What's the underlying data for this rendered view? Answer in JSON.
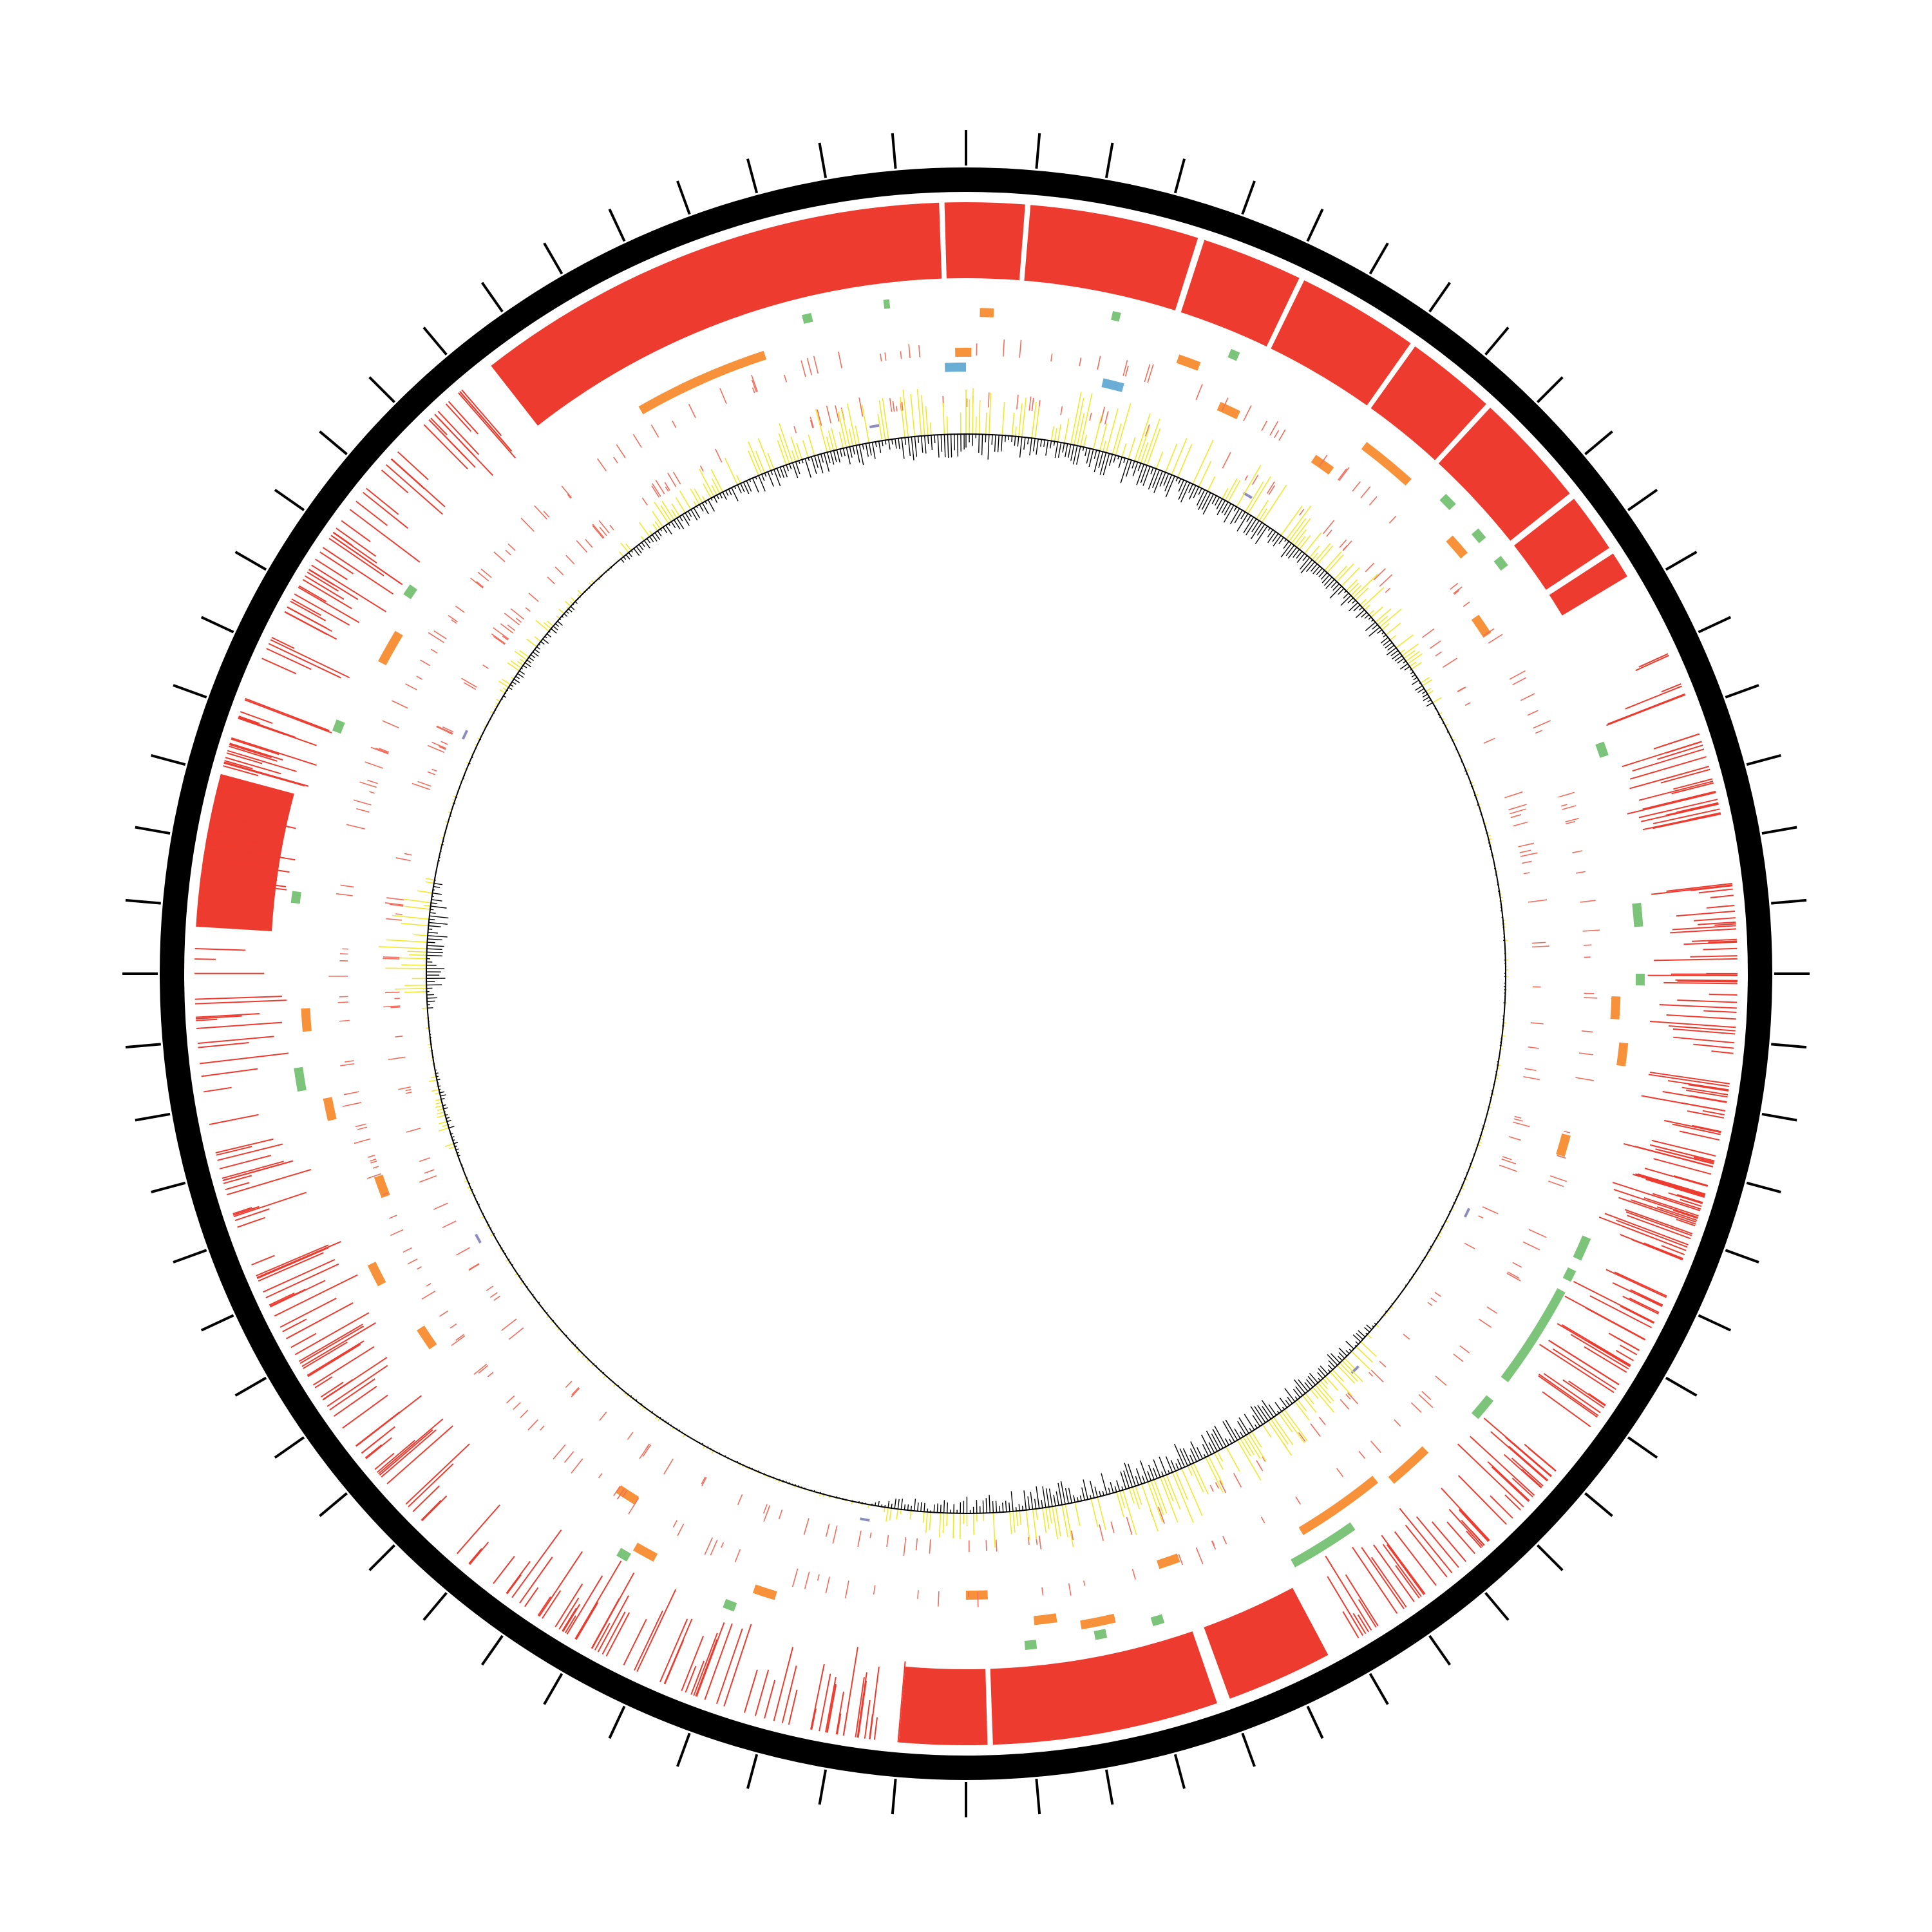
{
  "figure": {
    "type": "circular-genome-map",
    "tick_count": 72,
    "colors": {
      "backbone": "#000000",
      "similarity_blocks": "#ee3b2f",
      "genes_red": "#f26b5b",
      "genes_orange": "#f7923a",
      "genes_green": "#7cc47a",
      "genes_blue": "#6aaed6",
      "gc_positive": "#f2e72b",
      "gc_negative": "#000000",
      "small_marks": "#8c8cbf",
      "inner_circle": "#000000"
    },
    "tracks": {
      "blocks": [
        [
          -38,
          -2
        ],
        [
          -1.6,
          4.4
        ],
        [
          4.8,
          17.5
        ],
        [
          18,
          25.6
        ],
        [
          26,
          35.2
        ],
        [
          35.6,
          42.4
        ],
        [
          42.8,
          51.5
        ],
        [
          52,
          56.5
        ],
        [
          57,
          59
        ],
        [
          152,
          160
        ],
        [
          161,
          178
        ],
        [
          178.4,
          185
        ],
        [
          -86.5,
          -75
        ]
      ],
      "dense": [
        [
          -53,
          -40,
          22
        ],
        [
          -66,
          -54,
          30
        ],
        [
          -83,
          -69,
          40
        ],
        [
          -110,
          -88,
          30
        ],
        [
          -140,
          -112,
          52
        ],
        [
          -175,
          -142,
          45
        ],
        [
          65,
          80,
          28
        ],
        [
          82,
          96,
          35
        ],
        [
          98,
          112,
          55
        ],
        [
          114,
          126,
          32
        ],
        [
          130,
          150,
          45
        ],
        [
          188,
          204,
          18
        ]
      ],
      "orange": [
        [
          -26,
          -24
        ],
        [
          -1,
          0.5
        ],
        [
          1.2,
          2.4
        ],
        [
          19,
          21
        ],
        [
          24,
          26
        ],
        [
          -62,
          -59
        ],
        [
          -30,
          -18
        ],
        [
          34,
          36
        ],
        [
          37,
          42
        ],
        [
          48,
          50
        ],
        [
          55,
          57
        ],
        [
          -95,
          -93
        ],
        [
          -103,
          -101
        ],
        [
          -111,
          -109
        ],
        [
          -118,
          -116
        ],
        [
          -125,
          -123
        ],
        [
          -148,
          -146
        ],
        [
          -152,
          -150
        ],
        [
          -163,
          -161
        ],
        [
          160,
          162
        ],
        [
          167,
          170
        ],
        [
          172,
          174
        ],
        [
          178,
          180
        ],
        [
          136,
          140
        ],
        [
          141,
          149
        ],
        [
          105,
          107
        ],
        [
          96,
          98
        ],
        [
          92,
          94
        ]
      ],
      "green": [
        [
          -14,
          -13.2
        ],
        [
          -7,
          -6.5
        ],
        [
          12.5,
          13.2
        ],
        [
          23,
          23.8
        ],
        [
          45,
          46.2
        ],
        [
          49,
          50
        ],
        [
          52,
          53
        ],
        [
          70,
          71.2
        ],
        [
          84,
          86
        ],
        [
          90,
          91
        ],
        [
          113,
          115
        ],
        [
          116,
          117
        ],
        [
          118,
          127
        ],
        [
          129,
          131
        ],
        [
          145,
          151
        ],
        [
          163,
          164
        ],
        [
          168,
          169
        ],
        [
          174,
          175
        ],
        [
          -160,
          -159
        ],
        [
          -150,
          -149
        ],
        [
          -100,
          -98
        ],
        [
          -69,
          -68
        ],
        [
          -84,
          -83
        ],
        [
          -56,
          -55
        ]
      ],
      "blue": [
        [
          -2,
          0
        ],
        [
          13,
          15
        ]
      ],
      "small_marks": [
        [
          -65,
          -64
        ],
        [
          -10,
          -9
        ],
        [
          30,
          31
        ],
        [
          115,
          116
        ],
        [
          135,
          136
        ],
        [
          -170,
          -169
        ],
        [
          -119,
          -118
        ]
      ]
    },
    "gc_regions": [
      [
        -40,
        60,
        1.0
      ],
      [
        -94,
        -80,
        0.9
      ],
      [
        -60,
        -45,
        0.35
      ],
      [
        130,
        190,
        1.0
      ],
      [
        -110,
        -100,
        0.25
      ]
    ]
  }
}
